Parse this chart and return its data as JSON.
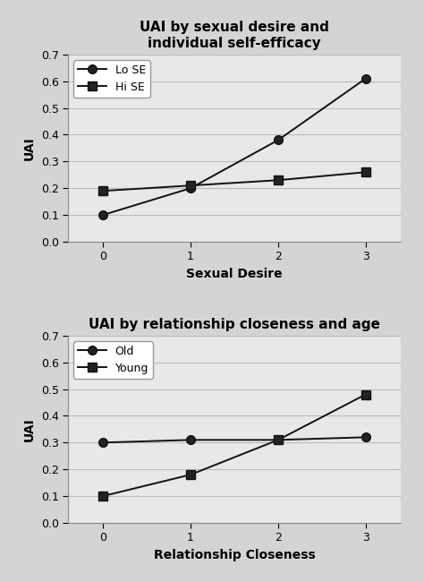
{
  "chart1": {
    "title": "UAI by sexual desire and\nindividual self-efficacy",
    "xlabel": "Sexual Desire",
    "ylabel": "UAI",
    "x": [
      0,
      1,
      2,
      3
    ],
    "series": [
      {
        "label": "Lo SE",
        "values": [
          0.1,
          0.2,
          0.38,
          0.61
        ],
        "marker": "o",
        "color": "#222222"
      },
      {
        "label": "Hi SE",
        "values": [
          0.19,
          0.21,
          0.23,
          0.26
        ],
        "marker": "s",
        "color": "#222222"
      }
    ],
    "ylim": [
      0,
      0.7
    ],
    "yticks": [
      0,
      0.1,
      0.2,
      0.3,
      0.4,
      0.5,
      0.6,
      0.7
    ],
    "xticks": [
      0,
      1,
      2,
      3
    ]
  },
  "chart2": {
    "title": "UAI by relationship closeness and age",
    "xlabel": "Relationship Closeness",
    "ylabel": "UAI",
    "x": [
      0,
      1,
      2,
      3
    ],
    "series": [
      {
        "label": "Old",
        "values": [
          0.3,
          0.31,
          0.31,
          0.32
        ],
        "marker": "o",
        "color": "#222222"
      },
      {
        "label": "Young",
        "values": [
          0.1,
          0.18,
          0.31,
          0.48
        ],
        "marker": "s",
        "color": "#222222"
      }
    ],
    "ylim": [
      0,
      0.7
    ],
    "yticks": [
      0,
      0.1,
      0.2,
      0.3,
      0.4,
      0.5,
      0.6,
      0.7
    ],
    "xticks": [
      0,
      1,
      2,
      3
    ]
  },
  "fig_bg_color": "#d4d4d4",
  "plot_bg_color": "#e8e8e8",
  "grid_color": "#bbbbbb",
  "line_color": "#111111",
  "marker_size": 7,
  "linewidth": 1.4,
  "title_fontsize": 11,
  "label_fontsize": 10,
  "tick_fontsize": 9,
  "legend_fontsize": 9
}
